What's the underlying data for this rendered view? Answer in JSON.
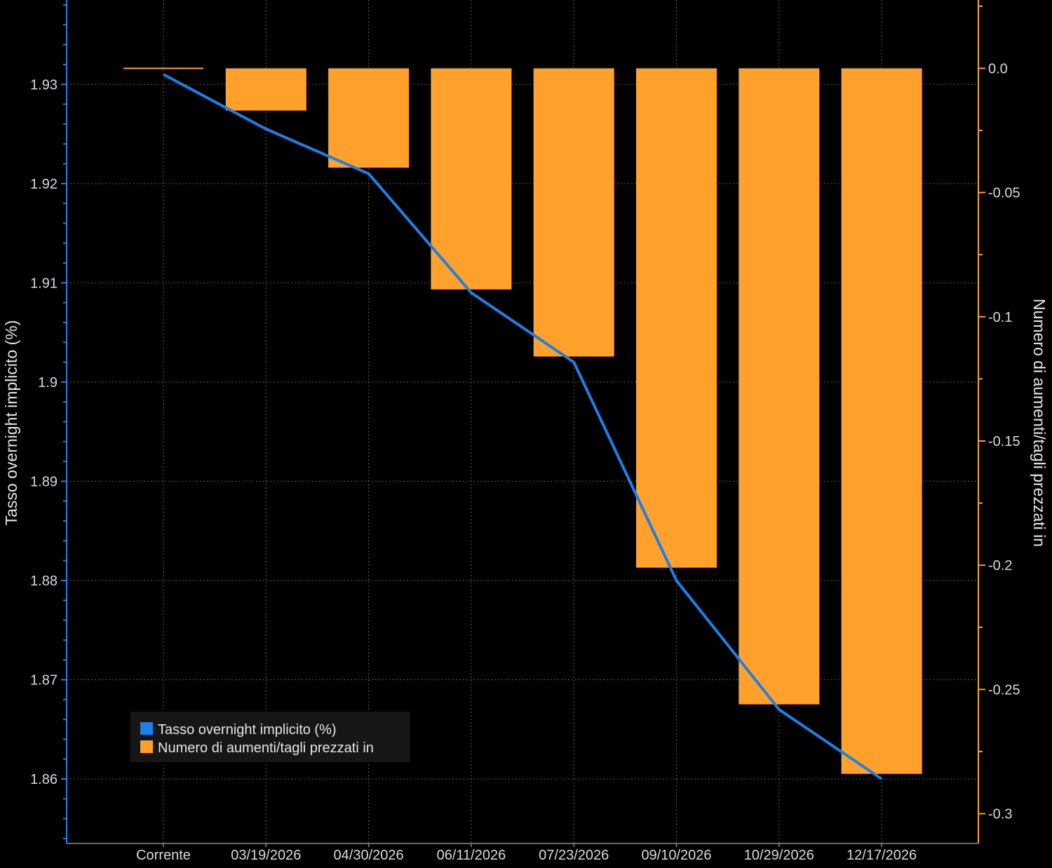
{
  "chart_data": {
    "type": "bar+line",
    "categories": [
      "Corrente",
      "03/19/2026",
      "04/30/2026",
      "06/11/2026",
      "07/23/2026",
      "09/10/2026",
      "10/29/2026",
      "12/17/2026"
    ],
    "series": [
      {
        "name": "Tasso overnight implicito (%)",
        "type": "line",
        "axis": "left",
        "color": "#1e7fe6",
        "values": [
          1.931,
          1.9255,
          1.921,
          1.909,
          1.902,
          1.88,
          1.867,
          1.86
        ]
      },
      {
        "name": "Numero di aumenti/tagli prezzati in",
        "type": "bar",
        "axis": "right",
        "color": "#ffa12b",
        "values": [
          0.0,
          -0.017,
          -0.04,
          -0.089,
          -0.116,
          -0.201,
          -0.256,
          -0.284
        ]
      }
    ],
    "left_axis": {
      "label": "Tasso overnight implicito (%)",
      "ylim": [
        1.8535,
        1.9385
      ],
      "ticks": [
        1.86,
        1.87,
        1.88,
        1.89,
        1.9,
        1.91,
        1.92,
        1.93
      ],
      "tick_labels": [
        "1.86",
        "1.87",
        "1.88",
        "1.89",
        "1.9",
        "1.91",
        "1.92",
        "1.93"
      ]
    },
    "right_axis": {
      "label": "Numero di aumenti/tagli prezzati in",
      "ylim": [
        -0.312,
        0.0275
      ],
      "ticks": [
        0.0,
        -0.05,
        -0.1,
        -0.15,
        -0.2,
        -0.25,
        -0.3
      ],
      "tick_labels": [
        "0.0",
        "-0.05",
        "-0.1",
        "-0.15",
        "-0.2",
        "-0.25",
        "-0.3"
      ]
    },
    "grid": true,
    "legend": {
      "position": "bottom-left",
      "entries": [
        "Tasso overnight implicito (%)",
        "Numero di aumenti/tagli prezzati in"
      ]
    },
    "colors": {
      "background": "#000000",
      "grid": "#5a5a5a",
      "left_axis": "#1e7fe6",
      "right_axis": "#ffa12b",
      "text": "#d9d9d9"
    }
  }
}
